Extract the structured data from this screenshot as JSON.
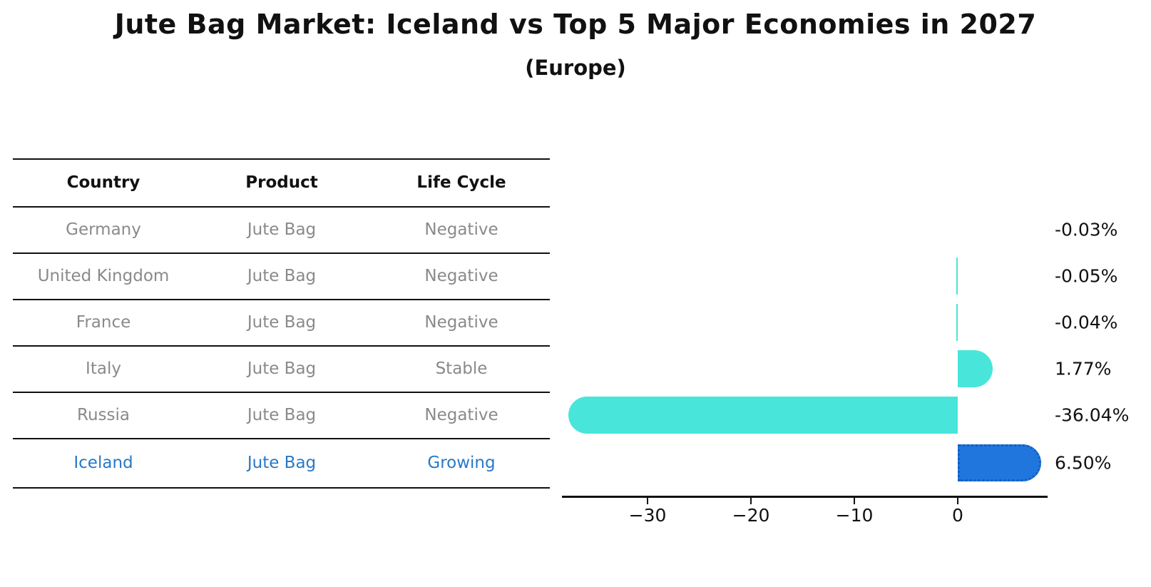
{
  "title": "Jute Bag Market: Iceland vs Top 5 Major Economies in 2027",
  "subtitle": "(Europe)",
  "table": {
    "headers": [
      "Country",
      "Product",
      "Life Cycle"
    ],
    "rows": [
      {
        "country": "Germany",
        "product": "Jute Bag",
        "life_cycle": "Negative",
        "highlight": false
      },
      {
        "country": "United Kingdom",
        "product": "Jute Bag",
        "life_cycle": "Negative",
        "highlight": false
      },
      {
        "country": "France",
        "product": "Jute Bag",
        "life_cycle": "Negative",
        "highlight": false
      },
      {
        "country": "Italy",
        "product": "Jute Bag",
        "life_cycle": "Stable",
        "highlight": false
      },
      {
        "country": "Russia",
        "product": "Jute Bag",
        "life_cycle": "Negative",
        "highlight": false
      },
      {
        "country": "Iceland",
        "product": "Jute Bag",
        "life_cycle": "Growing",
        "highlight": true
      }
    ]
  },
  "chart_data": {
    "type": "bar",
    "orientation": "horizontal",
    "title": "Jute Bag Market: Iceland vs Top 5 Major Economies in 2027",
    "subtitle": "(Europe)",
    "categories": [
      "Germany",
      "United Kingdom",
      "France",
      "Italy",
      "Russia",
      "Iceland"
    ],
    "values": [
      -0.03,
      -0.05,
      -0.04,
      1.77,
      -36.04,
      6.5
    ],
    "value_labels": [
      "-0.03%",
      "-0.05%",
      "-0.04%",
      "1.77%",
      "-36.04%",
      "6.50%"
    ],
    "xlabel": "",
    "ylabel": "",
    "x_ticks": [
      -30,
      -20,
      -10,
      0
    ],
    "x_tick_labels": [
      "−30",
      "−20",
      "−10",
      "0"
    ],
    "xlim": [
      -38.3,
      8.7
    ],
    "grid": false,
    "legend": "none",
    "highlighted_category": "Iceland",
    "colors": {
      "default_bar": "#48e5da",
      "highlight_bar": "#2176dd",
      "highlight_border": "#0f5fc4",
      "highlight_text": "#2878c8",
      "table_text": "#8a8a8a",
      "header_text": "#111111",
      "axis": "#111111"
    }
  }
}
